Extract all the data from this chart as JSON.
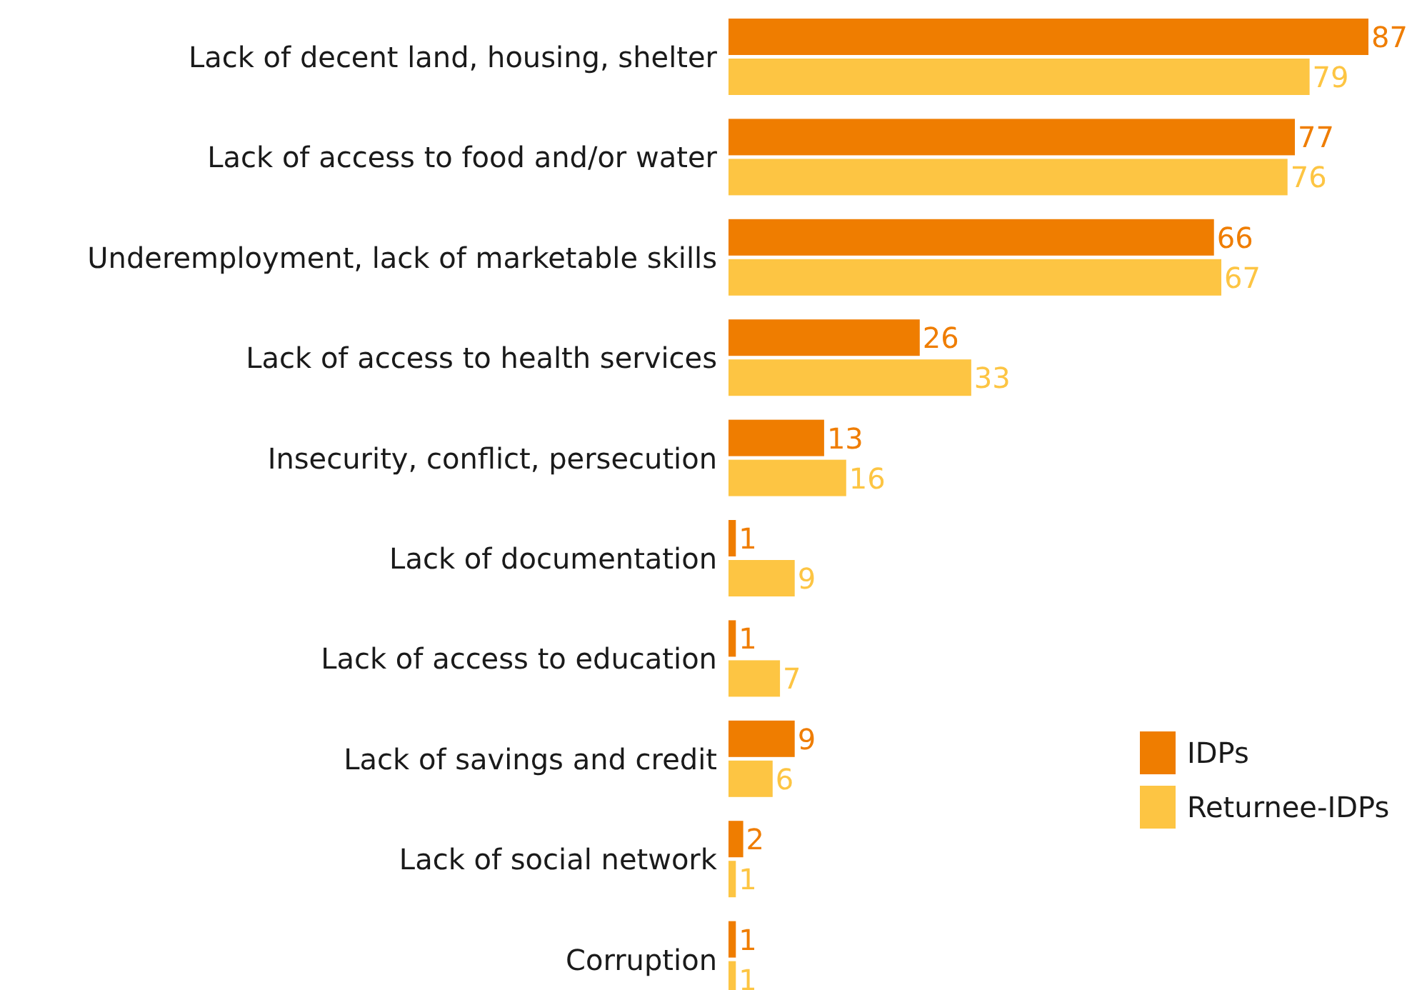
{
  "chart_data": {
    "type": "bar",
    "orientation": "horizontal",
    "categories": [
      "Lack of decent land, housing, shelter",
      "Lack of access to food and/or water",
      "Underemployment, lack of marketable skills",
      "Lack of access to health services",
      "Insecurity, conflict, persecution",
      "Lack of documentation",
      "Lack of access to education",
      "Lack of savings and credit",
      "Lack of social network",
      "Corruption"
    ],
    "series": [
      {
        "name": "IDPs",
        "color": "#ef7d00",
        "values": [
          87,
          77,
          66,
          26,
          13,
          1,
          1,
          9,
          2,
          1
        ]
      },
      {
        "name": "Returnee-IDPs",
        "color": "#fdc543",
        "values": [
          79,
          76,
          67,
          33,
          16,
          9,
          7,
          6,
          1,
          1
        ]
      }
    ],
    "data_labels": true,
    "legend": "bottom right",
    "grid": false
  }
}
